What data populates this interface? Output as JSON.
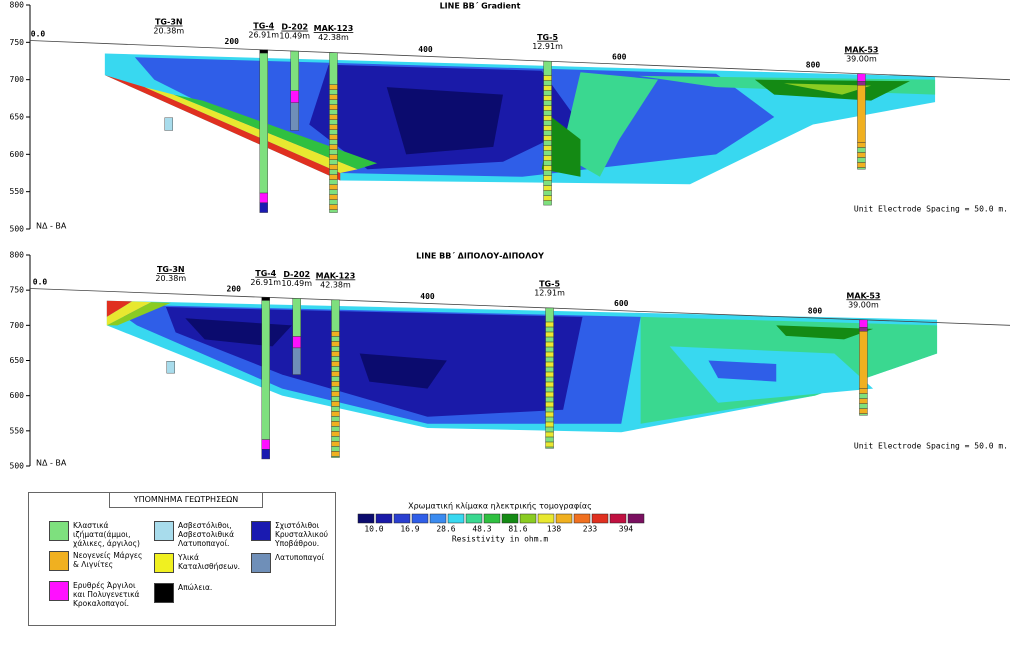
{
  "panels": [
    {
      "title": "LINE BB΄ Gradient",
      "orientation": "ΝΔ - ΒΑ",
      "note": "Unit Electrode Spacing = 50.0 m.",
      "yticks": [
        800,
        750,
        700,
        650,
        600,
        550,
        500
      ],
      "xticks": [
        {
          "value": 0,
          "label": "0.0"
        },
        200,
        400,
        600,
        800
      ],
      "boreholes": [
        {
          "name": "TG-3N",
          "depth": "20.38m"
        },
        {
          "name": "TG-4",
          "depth": "26.91m"
        },
        {
          "name": "D-202",
          "depth": "10.49m"
        },
        {
          "name": "MAK-123",
          "depth": "42.38m"
        },
        {
          "name": "TG-5",
          "depth": "12.91m"
        },
        {
          "name": "MAK-53",
          "depth": "39.00m"
        }
      ]
    },
    {
      "title": "LINE BB΄ ΔΙΠΟΛΟΥ-ΔΙΠΟΛΟΥ",
      "orientation": "ΝΔ - ΒΑ",
      "note": "Unit Electrode Spacing = 50.0 m.",
      "yticks": [
        800,
        750,
        700,
        650,
        600,
        550,
        500
      ],
      "xticks": [
        {
          "value": 0,
          "label": "0.0"
        },
        200,
        400,
        600,
        800
      ],
      "boreholes": [
        {
          "name": "TG-3N",
          "depth": "20.38m"
        },
        {
          "name": "TG-4",
          "depth": "26.91m"
        },
        {
          "name": "D-202",
          "depth": "10.49m"
        },
        {
          "name": "MAK-123",
          "depth": "42.38m"
        },
        {
          "name": "TG-5",
          "depth": "12.91m"
        },
        {
          "name": "MAK-53",
          "depth": "39.00m"
        }
      ]
    }
  ],
  "legend": {
    "title": "ΥΠΟΜΝΗΜΑ ΓΕΩΤΡΗΣΕΩΝ",
    "items": [
      "Κλαστικά ιζήματα(άμμοι, χάλικες, άργιλος)",
      "Ασβεστόλιθοι, Ασβεστολιθικά Λατυποπαγοί.",
      "Σχιστόλιθοι Κρυσταλλικού Υποβάθρου.",
      "Νεογενείς Μάργες & Λιγνίτες",
      "Υλικά Καταλισθήσεων.",
      "Λατυποπαγοί",
      "Ερυθρές Άργιλοι και Πολυγενετικά Κροκαλοπαγοί.",
      "Απώλεια."
    ]
  },
  "scale": {
    "title": "Χρωματική κλίμακα ηλεκτρικής τομογραφίας",
    "labels": [
      "10.0",
      "16.9",
      "28.6",
      "48.3",
      "81.6",
      "138",
      "233",
      "394"
    ],
    "unit": "Resistivity in ohm.m"
  }
}
